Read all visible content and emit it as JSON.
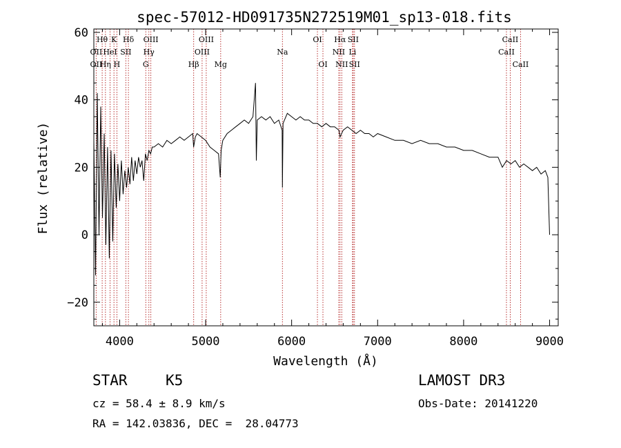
{
  "chart_data": {
    "type": "line",
    "title": "spec-57012-HD091735N272519M01_sp13-018.fits",
    "xlabel": "Wavelength (Å)",
    "ylabel": "Flux (relative)",
    "xlim": [
      3700,
      9100
    ],
    "ylim": [
      -27,
      61
    ],
    "xticks": [
      4000,
      5000,
      6000,
      7000,
      8000,
      9000
    ],
    "yticks": [
      -20,
      0,
      20,
      40,
      60
    ],
    "series": [
      {
        "name": "flux",
        "x": [
          3700,
          3720,
          3740,
          3760,
          3780,
          3800,
          3820,
          3840,
          3860,
          3880,
          3900,
          3920,
          3940,
          3960,
          3980,
          4000,
          4020,
          4040,
          4060,
          4080,
          4100,
          4120,
          4140,
          4160,
          4180,
          4200,
          4220,
          4240,
          4260,
          4280,
          4300,
          4320,
          4340,
          4360,
          4380,
          4400,
          4450,
          4500,
          4550,
          4600,
          4650,
          4700,
          4750,
          4800,
          4850,
          4860,
          4880,
          4900,
          4950,
          5000,
          5050,
          5100,
          5150,
          5170,
          5180,
          5200,
          5250,
          5300,
          5350,
          5400,
          5450,
          5500,
          5550,
          5580,
          5590,
          5600,
          5650,
          5700,
          5750,
          5800,
          5850,
          5890,
          5893,
          5900,
          5950,
          6000,
          6050,
          6100,
          6150,
          6200,
          6250,
          6300,
          6350,
          6400,
          6450,
          6500,
          6550,
          6563,
          6600,
          6650,
          6700,
          6750,
          6800,
          6850,
          6900,
          6950,
          7000,
          7100,
          7200,
          7300,
          7400,
          7500,
          7600,
          7700,
          7800,
          7900,
          8000,
          8100,
          8200,
          8300,
          8400,
          8450,
          8500,
          8550,
          8600,
          8650,
          8700,
          8750,
          8800,
          8850,
          8900,
          8950,
          8980,
          9000
        ],
        "y": [
          28,
          -12,
          42,
          0,
          38,
          5,
          30,
          -3,
          26,
          -7,
          25,
          -2,
          24,
          8,
          21,
          10,
          22,
          12,
          19,
          14,
          20,
          15,
          23,
          16,
          22,
          18,
          23,
          20,
          22,
          16,
          24,
          22,
          25,
          24,
          26,
          26,
          27,
          26,
          28,
          27,
          28,
          29,
          28,
          29,
          30,
          26,
          29,
          30,
          29,
          28,
          26,
          25,
          24,
          17,
          25,
          28,
          30,
          31,
          32,
          33,
          34,
          33,
          35,
          45,
          22,
          34,
          35,
          34,
          35,
          33,
          34,
          31,
          14,
          33,
          36,
          35,
          34,
          35,
          34,
          34,
          33,
          33,
          32,
          33,
          32,
          32,
          31,
          29,
          31,
          32,
          31,
          30,
          31,
          30,
          30,
          29,
          30,
          29,
          28,
          28,
          27,
          28,
          27,
          27,
          26,
          26,
          25,
          25,
          24,
          23,
          23,
          20,
          22,
          21,
          22,
          20,
          21,
          20,
          19,
          20,
          18,
          19,
          17,
          0
        ]
      }
    ],
    "lines": [
      {
        "name": "OII",
        "wl": 3727,
        "row": 2
      },
      {
        "name": "OII",
        "wl": 3727,
        "row": 3
      },
      {
        "name": "Hθ",
        "wl": 3797,
        "row": 1
      },
      {
        "name": "Hη",
        "wl": 3835,
        "row": 3
      },
      {
        "name": "HeI",
        "wl": 3889,
        "row": 2
      },
      {
        "name": "K",
        "wl": 3934,
        "row": 1
      },
      {
        "name": "H",
        "wl": 3968,
        "row": 3
      },
      {
        "name": "SII",
        "wl": 4072,
        "row": 2
      },
      {
        "name": "Hδ",
        "wl": 4102,
        "row": 1
      },
      {
        "name": "G",
        "wl": 4304,
        "row": 3
      },
      {
        "name": "Hγ",
        "wl": 4340,
        "row": 2
      },
      {
        "name": "OIII",
        "wl": 4363,
        "row": 1
      },
      {
        "name": "Hβ",
        "wl": 4861,
        "row": 3
      },
      {
        "name": "OIII",
        "wl": 4959,
        "row": 2
      },
      {
        "name": "OIII",
        "wl": 5007,
        "row": 1
      },
      {
        "name": "Mg",
        "wl": 5175,
        "row": 3
      },
      {
        "name": "Na",
        "wl": 5893,
        "row": 2
      },
      {
        "name": "OI",
        "wl": 6300,
        "row": 1
      },
      {
        "name": "OI",
        "wl": 6364,
        "row": 3
      },
      {
        "name": "NII",
        "wl": 6548,
        "row": 2
      },
      {
        "name": "Hα",
        "wl": 6563,
        "row": 1
      },
      {
        "name": "NII",
        "wl": 6583,
        "row": 3
      },
      {
        "name": "Li",
        "wl": 6708,
        "row": 2
      },
      {
        "name": "SII",
        "wl": 6716,
        "row": 1
      },
      {
        "name": "SII",
        "wl": 6731,
        "row": 3
      },
      {
        "name": "CaII",
        "wl": 8498,
        "row": 2
      },
      {
        "name": "CaII",
        "wl": 8542,
        "row": 1
      },
      {
        "name": "CaII",
        "wl": 8662,
        "row": 3
      }
    ]
  },
  "info": {
    "class": "STAR",
    "subclass": "K5",
    "survey": "LAMOST DR3",
    "cz": "cz = 58.4 ± 8.9 km/s",
    "obs_date": "Obs-Date: 20141220",
    "coords": "RA = 142.03836, DEC =  28.04773"
  },
  "colors": {
    "line_marker": "#b01818",
    "spectrum": "#000000"
  }
}
